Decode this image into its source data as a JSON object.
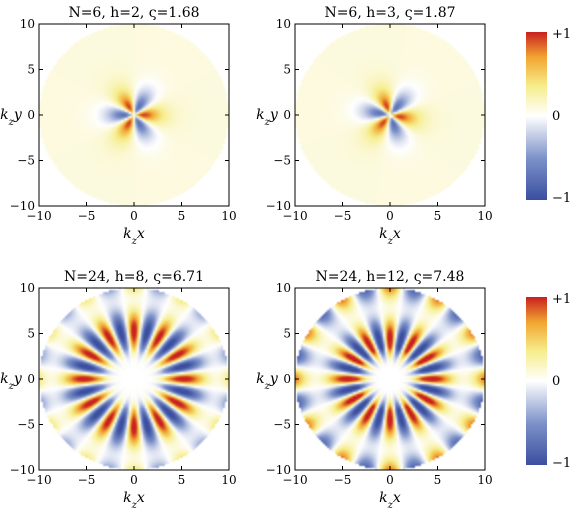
{
  "chart_data": [
    {
      "type": "heatmap",
      "title": "N=6, h=2, ς=1.68",
      "N": 6,
      "h": 2,
      "varsigma": 1.68,
      "xlabel": "k_z x",
      "ylabel": "k_z y",
      "xlim": [
        -10,
        10
      ],
      "ylim": [
        -10,
        10
      ],
      "xticks": [
        "−10",
        "−5",
        "0",
        "5",
        "10"
      ],
      "yticks": [
        "10",
        "5",
        "0",
        "−5",
        "−10"
      ],
      "domain_radius": 10
    },
    {
      "type": "heatmap",
      "title": "N=6, h=3, ς=1.87",
      "N": 6,
      "h": 3,
      "varsigma": 1.87,
      "xlabel": "k_z x",
      "ylabel": "k_z y",
      "xlim": [
        -10,
        10
      ],
      "ylim": [
        -10,
        10
      ],
      "xticks": [
        "−10",
        "−5",
        "0",
        "5",
        "10"
      ],
      "yticks": [
        "10",
        "5",
        "0",
        "−5",
        "−10"
      ],
      "domain_radius": 10
    },
    {
      "type": "heatmap",
      "title": "N=24, h=8, ς=6.71",
      "N": 24,
      "h": 8,
      "varsigma": 6.71,
      "xlabel": "k_z x",
      "ylabel": "k_z y",
      "xlim": [
        -10,
        10
      ],
      "ylim": [
        -10,
        10
      ],
      "xticks": [
        "−10",
        "−5",
        "0",
        "5",
        "10"
      ],
      "yticks": [
        "10",
        "5",
        "0",
        "−5",
        "−10"
      ],
      "domain_radius": 10
    },
    {
      "type": "heatmap",
      "title": "N=24, h=12, ς=7.48",
      "N": 24,
      "h": 12,
      "varsigma": 7.48,
      "xlabel": "k_z x",
      "ylabel": "k_z y",
      "xlim": [
        -10,
        10
      ],
      "ylim": [
        -10,
        10
      ],
      "xticks": [
        "−10",
        "−5",
        "0",
        "5",
        "10"
      ],
      "yticks": [
        "10",
        "5",
        "0",
        "−5",
        "−10"
      ],
      "domain_radius": 10
    }
  ],
  "colorbars": [
    {
      "labels": [
        "+1",
        "0",
        "−1"
      ],
      "range": [
        -1,
        1
      ]
    },
    {
      "labels": [
        "+1",
        "0",
        "−1"
      ],
      "range": [
        -1,
        1
      ]
    }
  ],
  "colormap": [
    "#3a4fa0",
    "#7d92c9",
    "#ffffff",
    "#f6ed8a",
    "#f2a530",
    "#c82020"
  ]
}
